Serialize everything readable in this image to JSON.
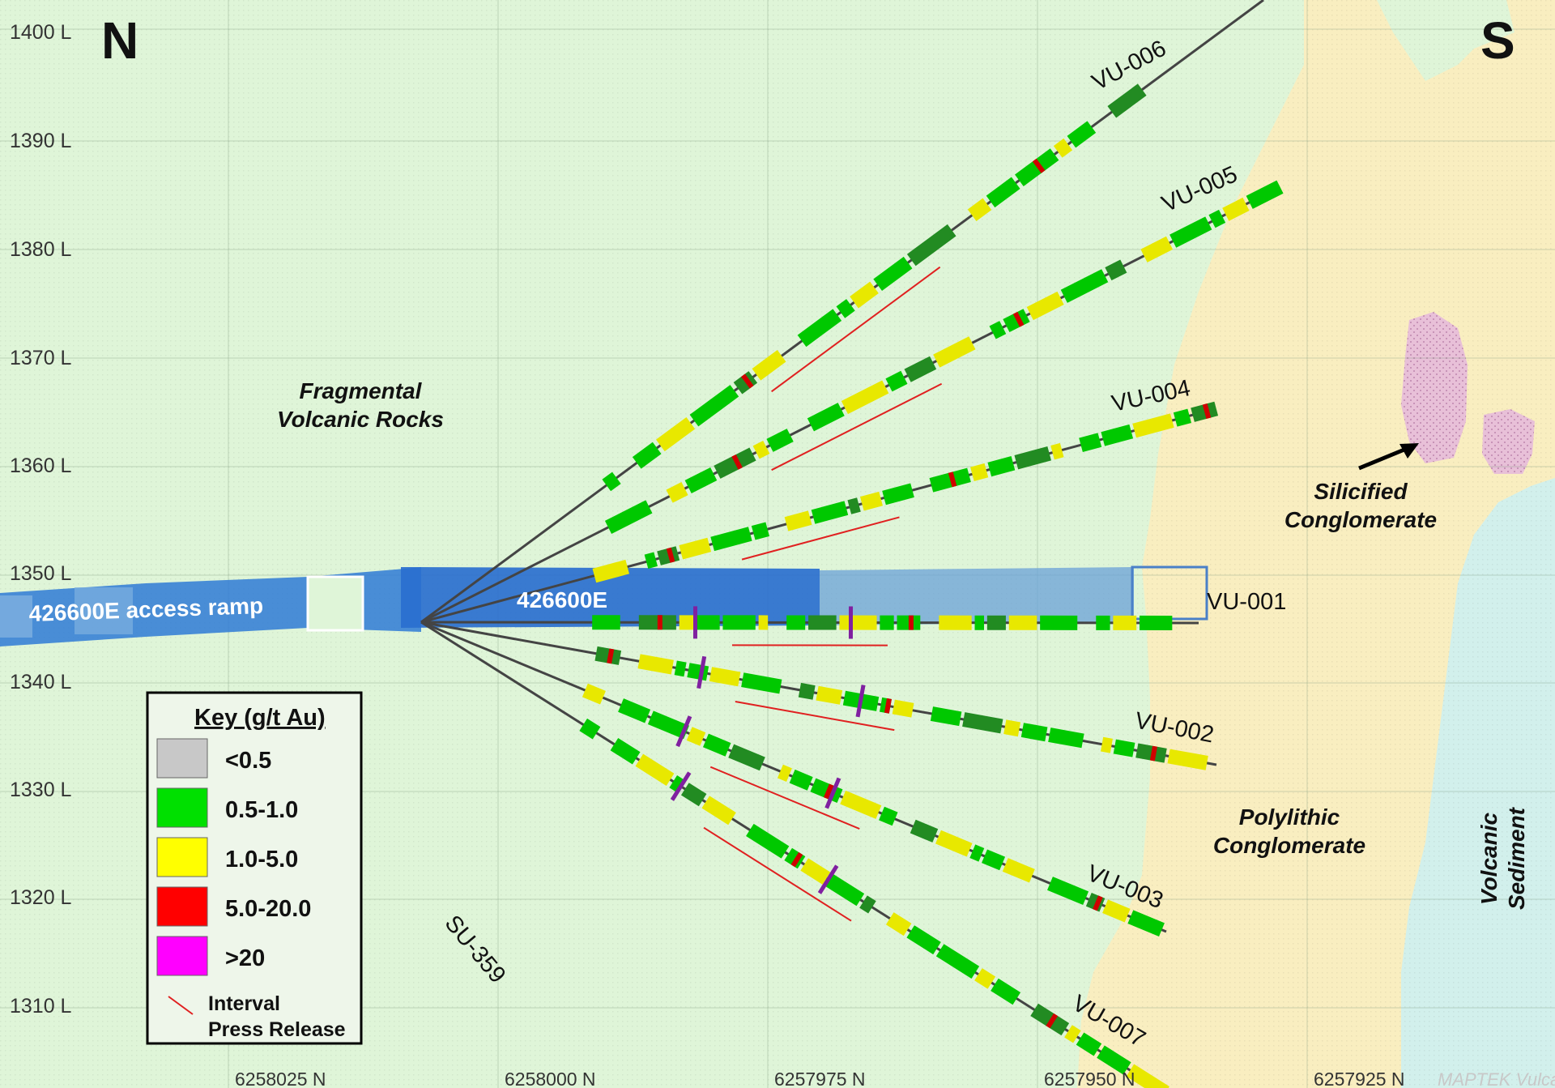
{
  "compass": {
    "north": "N",
    "south": "S"
  },
  "levels": [
    "1400 L",
    "1390 L",
    "1380 L",
    "1370 L",
    "1360 L",
    "1350 L",
    "1340 L",
    "1330 L",
    "1320 L",
    "1310 L"
  ],
  "northings": [
    "6258025 N",
    "6258000 N",
    "6257975 N",
    "6257950 N",
    "6257925 N"
  ],
  "geology": {
    "fragmental": [
      "Fragmental",
      "Volcanic Rocks"
    ],
    "silicified": [
      "Silicified",
      "Conglomerate"
    ],
    "polylithic": [
      "Polylithic",
      "Conglomerate"
    ],
    "volcanic_sediment": [
      "Volcanic",
      "Sediment"
    ]
  },
  "workings": {
    "ramp_label": "426600E access ramp",
    "drive_label": "426600E"
  },
  "holes": [
    {
      "id": "VU-006",
      "label": "VU-006"
    },
    {
      "id": "VU-005",
      "label": "VU-005"
    },
    {
      "id": "VU-004",
      "label": "VU-004"
    },
    {
      "id": "VU-001",
      "label": "VU-001"
    },
    {
      "id": "VU-002",
      "label": "VU-002"
    },
    {
      "id": "VU-003",
      "label": "VU-003"
    },
    {
      "id": "VU-007",
      "label": "VU-007"
    },
    {
      "id": "SU-359",
      "label": "SU-359"
    }
  ],
  "legend": {
    "title": "Key (g/t Au)",
    "items": [
      {
        "label": "<0.5",
        "color": "#c8c8c8"
      },
      {
        "label": "0.5-1.0",
        "color": "#00e000"
      },
      {
        "label": "1.0-5.0",
        "color": "#ffff00"
      },
      {
        "label": "5.0-20.0",
        "color": "#ff0000"
      },
      {
        "label": ">20",
        "color": "#ff00ff"
      }
    ],
    "interval_label": [
      "Interval",
      "Press Release"
    ]
  },
  "watermark": "MAPTEK Vulcan",
  "colors": {
    "volcanic_rocks": "#dff5d8",
    "conglomerate": "#f9eec0",
    "volcanic_sediment": "#d2f0ec",
    "silicified": "#e8c0d8",
    "ramp": "#2f7ad6",
    "interval_line": "#e02020"
  }
}
